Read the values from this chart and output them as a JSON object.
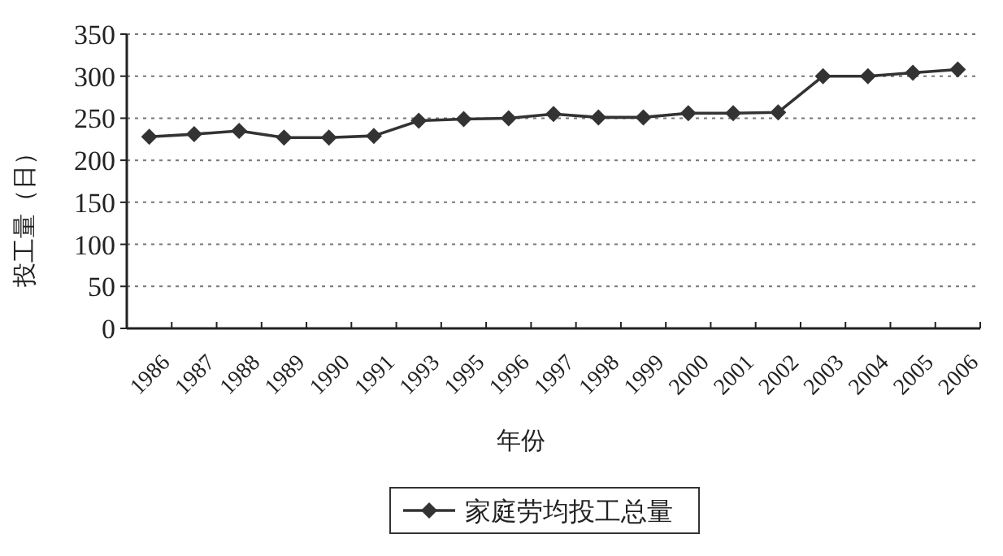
{
  "chart_data": {
    "type": "line",
    "xlabel": "年份",
    "ylabel": "投工量（日）",
    "categories": [
      "1986",
      "1987",
      "1988",
      "1989",
      "1990",
      "1991",
      "1993",
      "1995",
      "1996",
      "1997",
      "1998",
      "1999",
      "2000",
      "2001",
      "2002",
      "2003",
      "2004",
      "2005",
      "2006"
    ],
    "series": [
      {
        "name": "家庭劳均投工总量",
        "color": "#333333",
        "values": [
          228,
          231,
          235,
          227,
          227,
          229,
          247,
          249,
          250,
          255,
          251,
          251,
          256,
          256,
          257,
          300,
          300,
          304,
          308
        ]
      }
    ],
    "ylim": [
      0,
      350
    ],
    "yticks": [
      0,
      50,
      100,
      150,
      200,
      250,
      300,
      350
    ],
    "grid": "y",
    "legend": "bottom",
    "marker": "diamond",
    "line_style": "solid"
  }
}
